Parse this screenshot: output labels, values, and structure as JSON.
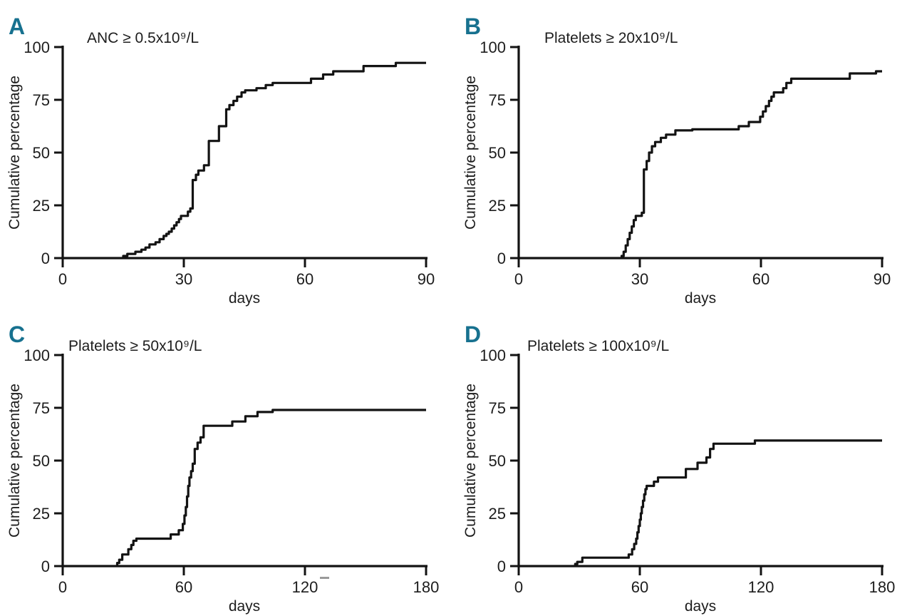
{
  "figure": {
    "background": "#ffffff",
    "text_color": "#1d1d1d",
    "curve_color": "#131313",
    "axis_color": "#131313",
    "panel_letter_color": "#17718f",
    "ylabel": "Cumulative percentage",
    "xlabel": "days"
  },
  "chart_data": [
    {
      "type": "line",
      "panel": "A",
      "title": "ANC ≥ 0.5x10⁹/L",
      "xlabel": "days",
      "ylabel": "Cumulative percentage",
      "xlim": [
        0,
        90
      ],
      "ylim": [
        0,
        100
      ],
      "xticks": [
        0,
        30,
        60,
        90
      ],
      "yticks": [
        0,
        25,
        50,
        75,
        100
      ],
      "grid": false,
      "legend": "none",
      "step": "after",
      "title_x": 122,
      "points": [
        [
          15,
          1
        ],
        [
          16,
          2
        ],
        [
          18,
          3
        ],
        [
          19.5,
          4
        ],
        [
          20.5,
          5
        ],
        [
          21.5,
          6.5
        ],
        [
          23,
          7.5
        ],
        [
          24,
          9
        ],
        [
          25,
          10.5
        ],
        [
          25.7,
          11.5
        ],
        [
          26.3,
          12.5
        ],
        [
          27,
          14
        ],
        [
          27.6,
          15.5
        ],
        [
          28.2,
          17
        ],
        [
          28.8,
          18.5
        ],
        [
          29.3,
          20
        ],
        [
          31,
          22
        ],
        [
          31.6,
          23.5
        ],
        [
          32.2,
          37
        ],
        [
          33,
          39.5
        ],
        [
          33.6,
          41.5
        ],
        [
          35,
          44
        ],
        [
          36.2,
          55.5
        ],
        [
          38.7,
          62.5
        ],
        [
          40.5,
          70.5
        ],
        [
          41.3,
          72.5
        ],
        [
          42.3,
          74.5
        ],
        [
          43.2,
          76.5
        ],
        [
          44.3,
          78.5
        ],
        [
          45.2,
          79.5
        ],
        [
          48,
          80.5
        ],
        [
          50.3,
          82
        ],
        [
          52,
          83
        ],
        [
          61.5,
          85
        ],
        [
          64.5,
          87
        ],
        [
          67,
          88.5
        ],
        [
          74.5,
          91
        ],
        [
          82.5,
          92.5
        ]
      ]
    },
    {
      "type": "line",
      "panel": "B",
      "title": "Platelets ≥ 20x10⁹/L",
      "xlabel": "days",
      "ylabel": "Cumulative percentage",
      "xlim": [
        0,
        90
      ],
      "ylim": [
        0,
        100
      ],
      "xticks": [
        0,
        30,
        60,
        90
      ],
      "yticks": [
        0,
        25,
        50,
        75,
        100
      ],
      "grid": false,
      "legend": "none",
      "step": "after",
      "title_x": 124,
      "points": [
        [
          25.5,
          1
        ],
        [
          26,
          3
        ],
        [
          26.5,
          6
        ],
        [
          27,
          9
        ],
        [
          27.5,
          12
        ],
        [
          28,
          15
        ],
        [
          28.5,
          18
        ],
        [
          29,
          20
        ],
        [
          30.5,
          21.5
        ],
        [
          31,
          42
        ],
        [
          31.7,
          46
        ],
        [
          32.3,
          50
        ],
        [
          33,
          53
        ],
        [
          33.8,
          55
        ],
        [
          35.2,
          57
        ],
        [
          36.5,
          58.5
        ],
        [
          38.8,
          60.5
        ],
        [
          43,
          61
        ],
        [
          54.5,
          62.5
        ],
        [
          57,
          64.5
        ],
        [
          59.8,
          67
        ],
        [
          60.5,
          69.5
        ],
        [
          61.2,
          72
        ],
        [
          62,
          74.5
        ],
        [
          62.6,
          76.5
        ],
        [
          63.2,
          78.5
        ],
        [
          65.5,
          80.5
        ],
        [
          66.3,
          83
        ],
        [
          67.5,
          85
        ],
        [
          82,
          87.5
        ],
        [
          88.5,
          88.5
        ]
      ]
    },
    {
      "type": "line",
      "panel": "C",
      "title": "Platelets ≥ 50x10⁹/L",
      "xlabel": "days",
      "ylabel": "Cumulative percentage",
      "xlim": [
        0,
        180
      ],
      "ylim": [
        0,
        100
      ],
      "xticks": [
        0,
        60,
        120,
        180
      ],
      "yticks": [
        0,
        25,
        50,
        75,
        100
      ],
      "grid": false,
      "legend": "none",
      "step": "after",
      "title_x": 96,
      "artifacts": [
        {
          "x": 449,
          "y": 377,
          "w": 13,
          "h": 3,
          "color": "#9a9a9a"
        }
      ],
      "points": [
        [
          27,
          1.5
        ],
        [
          28,
          3
        ],
        [
          29.5,
          5.5
        ],
        [
          32.5,
          8
        ],
        [
          34,
          10
        ],
        [
          35,
          12
        ],
        [
          36.5,
          13
        ],
        [
          53.5,
          15
        ],
        [
          57.5,
          17
        ],
        [
          59.5,
          20
        ],
        [
          60.3,
          24
        ],
        [
          61,
          28
        ],
        [
          61.6,
          33
        ],
        [
          62.2,
          38
        ],
        [
          62.8,
          42
        ],
        [
          63.6,
          45
        ],
        [
          64.4,
          48.5
        ],
        [
          65.4,
          55.5
        ],
        [
          66.8,
          58.5
        ],
        [
          68.3,
          61
        ],
        [
          69.8,
          66.5
        ],
        [
          84,
          68.5
        ],
        [
          90.5,
          71
        ],
        [
          96.5,
          73
        ],
        [
          104,
          74
        ]
      ]
    },
    {
      "type": "line",
      "panel": "D",
      "title": "Platelets ≥ 100x10⁹/L",
      "xlabel": "days",
      "ylabel": "Cumulative percentage",
      "xlim": [
        0,
        180
      ],
      "ylim": [
        0,
        100
      ],
      "xticks": [
        0,
        60,
        120,
        180
      ],
      "yticks": [
        0,
        25,
        50,
        75,
        100
      ],
      "grid": false,
      "legend": "none",
      "step": "after",
      "title_x": 100,
      "points": [
        [
          28,
          1
        ],
        [
          29,
          2
        ],
        [
          31.5,
          4
        ],
        [
          54.5,
          5.5
        ],
        [
          56.2,
          8
        ],
        [
          57.2,
          10.5
        ],
        [
          58.2,
          13
        ],
        [
          58.8,
          16
        ],
        [
          59.4,
          19
        ],
        [
          60,
          22
        ],
        [
          60.5,
          25
        ],
        [
          61,
          28
        ],
        [
          61.6,
          31
        ],
        [
          62.2,
          34
        ],
        [
          62.8,
          36.5
        ],
        [
          63.4,
          38
        ],
        [
          67,
          40
        ],
        [
          69,
          42
        ],
        [
          82.8,
          46
        ],
        [
          88.6,
          49
        ],
        [
          93,
          51.5
        ],
        [
          94.8,
          55.5
        ],
        [
          96.5,
          58
        ],
        [
          117,
          59.5
        ]
      ]
    }
  ]
}
